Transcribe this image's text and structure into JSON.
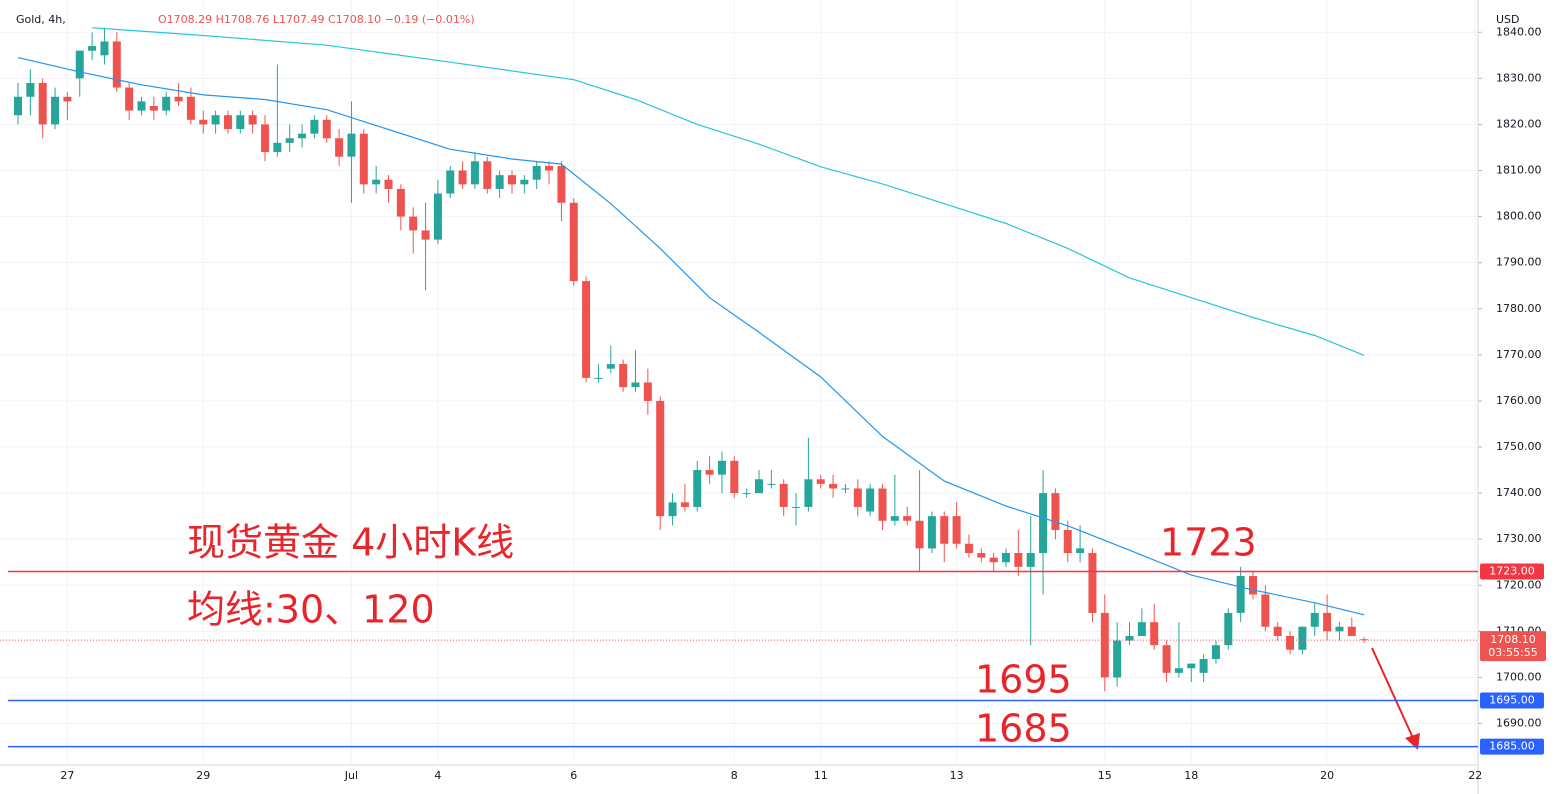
{
  "chart_data": {
    "type": "candlestick",
    "symbol": "Gold, 4h,",
    "ohlc_text": "O1708.29 H1708.76 L1707.49 C1708.10 −0.19 (−0.01%)",
    "currency": "USD",
    "up_color": "#26a69a",
    "down_color": "#ef5350",
    "grid": true,
    "ylim": [
      1681,
      1847
    ],
    "yticks": [
      {
        "value": 1690,
        "label": "1690.00"
      },
      {
        "value": 1700,
        "label": "1700.00"
      },
      {
        "value": 1710,
        "label": "1710.00"
      },
      {
        "value": 1720,
        "label": "1720.00"
      },
      {
        "value": 1730,
        "label": "1730.00"
      },
      {
        "value": 1740,
        "label": "1740.00"
      },
      {
        "value": 1750,
        "label": "1750.00"
      },
      {
        "value": 1760,
        "label": "1760.00"
      },
      {
        "value": 1770,
        "label": "1770.00"
      },
      {
        "value": 1780,
        "label": "1780.00"
      },
      {
        "value": 1790,
        "label": "1790.00"
      },
      {
        "value": 1800,
        "label": "1800.00"
      },
      {
        "value": 1810,
        "label": "1810.00"
      },
      {
        "value": 1820,
        "label": "1820.00"
      },
      {
        "value": 1830,
        "label": "1830.00"
      },
      {
        "value": 1840,
        "label": "1840.00"
      }
    ],
    "categories": [
      null,
      null,
      null,
      null,
      "27",
      null,
      null,
      null,
      null,
      null,
      null,
      null,
      null,
      null,
      null,
      "29",
      null,
      null,
      null,
      null,
      null,
      null,
      null,
      null,
      null,
      null,
      null,
      "Jul",
      null,
      null,
      null,
      null,
      null,
      null,
      "4",
      null,
      null,
      null,
      null,
      null,
      null,
      null,
      null,
      null,
      null,
      "6",
      null,
      null,
      null,
      null,
      null,
      null,
      null,
      null,
      null,
      null,
      null,
      null,
      "8",
      null,
      null,
      null,
      null,
      null,
      null,
      "11",
      null,
      null,
      null,
      null,
      null,
      null,
      null,
      null,
      null,
      null,
      "13",
      null,
      null,
      null,
      null,
      null,
      null,
      null,
      null,
      null,
      null,
      null,
      "15",
      null,
      null,
      null,
      null,
      null,
      null,
      "18",
      null,
      null,
      null,
      null,
      null,
      null,
      null,
      null,
      null,
      null,
      "20",
      null,
      null,
      null,
      null,
      null,
      null,
      null,
      null,
      null,
      null,
      null,
      "22",
      null
    ],
    "open": [
      1822,
      1826,
      1829,
      1820,
      1826,
      1830,
      1836,
      1835,
      1838,
      1828,
      1823,
      1824,
      1823,
      1826,
      1826,
      1821,
      1820,
      1822,
      1819,
      1822,
      1820,
      1814,
      1816,
      1817,
      1818,
      1821,
      1817,
      1813,
      1818,
      1807,
      1808,
      1806,
      1800,
      1797,
      1795,
      1805,
      1810,
      1807,
      1812,
      1806,
      1809,
      1807,
      1808,
      1811,
      1811,
      1803,
      1786,
      1765,
      1767,
      1768,
      1763,
      1764,
      1760,
      1735,
      1738,
      1737,
      1745,
      1744,
      1747,
      1740,
      1740,
      1742,
      1742,
      1737,
      1737,
      1743,
      1742,
      1741,
      1741,
      1736,
      1741,
      1734,
      1735,
      1734,
      1728,
      1735,
      1735,
      1729,
      1727,
      1726,
      1725,
      1727,
      1724,
      1727,
      1740,
      1732,
      1727,
      1727,
      1714,
      1700,
      1708,
      1709,
      1712,
      1707,
      1701,
      1702,
      1701,
      1704,
      1707,
      1714,
      1722,
      1718,
      1711,
      1709,
      1706,
      1711,
      1714,
      1710,
      1711,
      1708.29,
      null,
      null,
      null,
      null,
      null,
      null,
      null,
      null,
      null,
      null
    ],
    "high": [
      1829,
      1832,
      1830,
      1828,
      1827,
      1836,
      1840,
      1841,
      1840,
      1829,
      1826,
      1826,
      1827,
      1829,
      1828,
      1823,
      1823,
      1823,
      1823,
      1823,
      1822,
      1833,
      1820,
      1820,
      1822,
      1822,
      1819,
      1825,
      1819,
      1811,
      1809,
      1807,
      1802,
      1803,
      1808,
      1811,
      1812,
      1814,
      1813,
      1810,
      1810,
      1809,
      1812,
      1812,
      1812,
      1804,
      1787,
      1768,
      1772,
      1769,
      1771,
      1767,
      1761,
      1740,
      1742,
      1747,
      1748,
      1749,
      1748,
      1741,
      1745,
      1745,
      1743,
      1740,
      1752,
      1744,
      1744,
      1742,
      1743,
      1742,
      1742,
      1744,
      1737,
      1745,
      1736,
      1736,
      1738,
      1731,
      1728,
      1727,
      1728,
      1732,
      1735,
      1745,
      1741,
      1734,
      1733,
      1728,
      1718,
      1712,
      1712,
      1715,
      1716,
      1708,
      1712,
      1703,
      1705,
      1708,
      1715,
      1724,
      1723,
      1720,
      1712,
      1710,
      1711,
      1716,
      1718,
      1712,
      1713,
      1708.76,
      null,
      null,
      null,
      null,
      null,
      null,
      null,
      null,
      null,
      null
    ],
    "low": [
      1820,
      1822,
      1817,
      1819,
      1821,
      1826,
      1834,
      1833,
      1827,
      1821,
      1822,
      1821,
      1822,
      1824,
      1820,
      1818,
      1818,
      1818,
      1818,
      1818,
      1812,
      1813,
      1814,
      1815,
      1817,
      1816,
      1811,
      1803,
      1805,
      1805,
      1803,
      1797,
      1792,
      1784,
      1794,
      1804,
      1806,
      1806,
      1805,
      1804,
      1805,
      1805,
      1806,
      1807,
      1799,
      1785,
      1764,
      1764,
      1766,
      1762,
      1762,
      1757,
      1732,
      1733,
      1736,
      1736,
      1742,
      1740,
      1739,
      1739,
      1740,
      1741,
      1735,
      1733,
      1736,
      1741,
      1739,
      1740,
      1735,
      1735,
      1732,
      1733,
      1733,
      1723,
      1727,
      1725,
      1728,
      1726,
      1725,
      1723,
      1724,
      1722,
      1707,
      1718,
      1730,
      1725,
      1725,
      1712,
      1697,
      1698,
      1707,
      1709,
      1706,
      1699,
      1700,
      1699,
      1699,
      1703,
      1706,
      1712,
      1717,
      1710,
      1708,
      1705,
      1705,
      1709,
      1708,
      1708,
      1709,
      1707.49,
      null,
      null,
      null,
      null,
      null,
      null,
      null,
      null,
      null,
      null
    ],
    "close": [
      1826,
      1829,
      1820,
      1826,
      1825,
      1836,
      1837,
      1838,
      1828,
      1823,
      1825,
      1823,
      1826,
      1825,
      1821,
      1820,
      1822,
      1819,
      1822,
      1820,
      1814,
      1816,
      1817,
      1818,
      1821,
      1817,
      1813,
      1818,
      1807,
      1808,
      1806,
      1800,
      1797,
      1795,
      1805,
      1810,
      1807,
      1812,
      1806,
      1809,
      1807,
      1808,
      1811,
      1810,
      1803,
      1786,
      1765,
      1765,
      1768,
      1763,
      1764,
      1760,
      1735,
      1738,
      1737,
      1745,
      1744,
      1747,
      1740,
      1740,
      1743,
      1742,
      1737,
      1737,
      1743,
      1742,
      1741,
      1741,
      1737,
      1741,
      1734,
      1735,
      1734,
      1728,
      1735,
      1729,
      1729,
      1727,
      1726,
      1725,
      1727,
      1724,
      1727,
      1740,
      1732,
      1727,
      1728,
      1714,
      1700,
      1708,
      1709,
      1712,
      1707,
      1701,
      1702,
      1703,
      1704,
      1707,
      1714,
      1722,
      1718,
      1711,
      1709,
      1706,
      1711,
      1714,
      1710,
      1711,
      1709,
      1708.1,
      null,
      null,
      null,
      null,
      null,
      null,
      null,
      null,
      null,
      null
    ],
    "series": [
      {
        "type": "line",
        "color": "#2196f3",
        "x": [
          0,
          5,
          10,
          15,
          20,
          25,
          30,
          35,
          40,
          44,
          48,
          52,
          56,
          60,
          65,
          70,
          75,
          80,
          85,
          90,
          95,
          100,
          105,
          109
        ],
        "values": [
          1834.5,
          1831.4,
          1828.6,
          1826.4,
          1825.4,
          1823.2,
          1818.9,
          1814.6,
          1812.5,
          1811.4,
          1802.8,
          1793.1,
          1782.4,
          1774.9,
          1765.2,
          1752.3,
          1742.6,
          1737.2,
          1732.9,
          1727.6,
          1722.2,
          1719.0,
          1716.2,
          1713.6
        ]
      },
      {
        "type": "line",
        "color": "#26c6da",
        "x": [
          6,
          15,
          25,
          35,
          45,
          50,
          55,
          60,
          65,
          70,
          75,
          80,
          85,
          90,
          95,
          100,
          105,
          109
        ],
        "values": [
          1841,
          1839.3,
          1837.2,
          1833.5,
          1829.7,
          1825.4,
          1820.0,
          1815.7,
          1810.8,
          1807.1,
          1802.8,
          1798.5,
          1793.1,
          1786.7,
          1782.4,
          1778.1,
          1774.2,
          1769.9
        ]
      }
    ],
    "hlines": [
      {
        "value": 1723,
        "label": "1723.00",
        "color": "#f23645"
      },
      {
        "value": 1695,
        "label": "1695.00",
        "color": "#2962ff"
      },
      {
        "value": 1685,
        "label": "1685.00",
        "color": "#2962ff"
      }
    ],
    "last_price": {
      "value": 1708.1,
      "label": "1708.10",
      "countdown": "03:55:55",
      "color": "#ef5350"
    },
    "annotations": [
      "现货黄金 4小时K线",
      "均线:30、120",
      "1723",
      "1695",
      "1685"
    ]
  }
}
